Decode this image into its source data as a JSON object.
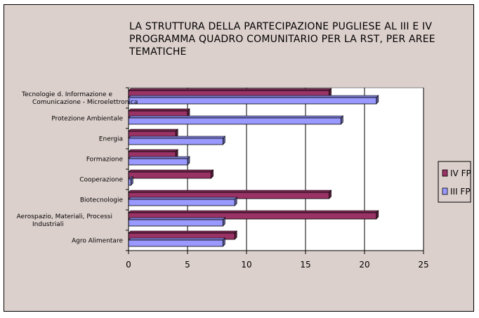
{
  "chart_data": {
    "type": "bar",
    "orientation": "horizontal",
    "title": "LA STRUTTURA DELLA PARTECIPAZIONE PUGLIESE AL III E IV PROGRAMMA QUADRO COMUNITARIO PER LA RST, PER AREE TEMATICHE",
    "categories": [
      "Tecnologie d. Informazione e Comunicazione - Microelettronica",
      "Protezione Ambientale",
      "Energia",
      "Formazione",
      "Cooperazione",
      "Biotecnologie",
      "Aerospazio, Materiali, Processi Industriali",
      "Agro Alimentare"
    ],
    "category_lines": [
      [
        "Tecnologie d. Informazione e",
        "Comunicazione - Microelettronica"
      ],
      [
        "Protezione Ambientale"
      ],
      [
        "Energia"
      ],
      [
        "Formazione"
      ],
      [
        "Cooperazione"
      ],
      [
        "Biotecnologie"
      ],
      [
        "Aerospazio, Materiali, Processi",
        "Industriali"
      ],
      [
        "Agro Alimentare"
      ]
    ],
    "series": [
      {
        "name": "IV FP",
        "color": "#993366",
        "values": [
          17,
          5,
          4,
          4,
          7,
          17,
          21,
          9
        ]
      },
      {
        "name": "III FP",
        "color": "#9999ff",
        "values": [
          21,
          18,
          8,
          5,
          0.2,
          9,
          8,
          8
        ]
      }
    ],
    "xlim": [
      0,
      25
    ],
    "xticks": [
      "0",
      "5",
      "10",
      "15",
      "20",
      "25"
    ],
    "xlabel": "",
    "ylabel": "",
    "grid": "vertical",
    "legend_position": "right"
  }
}
